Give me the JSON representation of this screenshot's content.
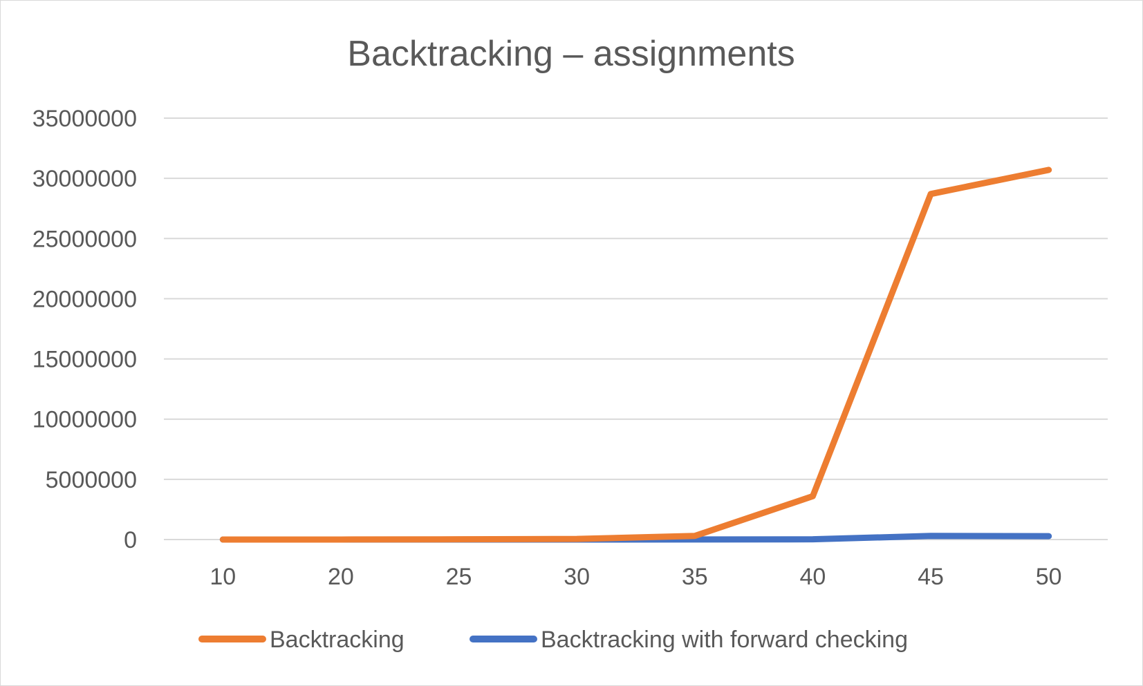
{
  "chart_data": {
    "type": "line",
    "title": "Backtracking – assignments",
    "xlabel": "",
    "ylabel": "",
    "categories": [
      "10",
      "20",
      "25",
      "30",
      "35",
      "40",
      "45",
      "50"
    ],
    "y_ticks": [
      "0",
      "5000000",
      "10000000",
      "15000000",
      "20000000",
      "25000000",
      "30000000",
      "35000000"
    ],
    "ylim": [
      0,
      35000000
    ],
    "grid": true,
    "legend_position": "bottom",
    "series": [
      {
        "name": "Backtracking",
        "color": "#ED7D31",
        "values": [
          500,
          3000,
          20000,
          50000,
          300000,
          3600000,
          28700000,
          30700000
        ]
      },
      {
        "name": "Backtracking with forward checking",
        "color": "#4472C4",
        "values": [
          50,
          100,
          500,
          1000,
          5000,
          20000,
          300000,
          280000
        ]
      }
    ]
  }
}
